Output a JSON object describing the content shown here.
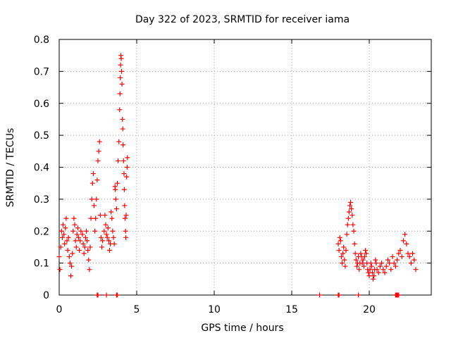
{
  "chart_data": {
    "type": "scatter",
    "title": "Day 322 of 2023, SRMTID for receiver iama",
    "xlabel": "GPS time / hours",
    "ylabel": "SRMTID / TECUs",
    "xlim": [
      0,
      24
    ],
    "ylim": [
      0,
      0.8
    ],
    "x_ticks": [
      0,
      5,
      10,
      15,
      20
    ],
    "x_tick_labels": [
      "0",
      "5",
      "10",
      "15",
      "20"
    ],
    "y_ticks": [
      0,
      0.1,
      0.2,
      0.3,
      0.4,
      0.5,
      0.6,
      0.7,
      0.8
    ],
    "y_tick_labels": [
      "0",
      "0.1",
      "0.2",
      "0.3",
      "0.4",
      "0.5",
      "0.6",
      "0.7",
      "0.8"
    ],
    "grid": true,
    "marker": "+",
    "color": "#ff0000",
    "series": [
      {
        "name": "SRMTID",
        "points": [
          [
            0.0,
            0.12
          ],
          [
            0.05,
            0.08
          ],
          [
            0.1,
            0.15
          ],
          [
            0.15,
            0.2
          ],
          [
            0.2,
            0.18
          ],
          [
            0.25,
            0.22
          ],
          [
            0.3,
            0.19
          ],
          [
            0.35,
            0.16
          ],
          [
            0.4,
            0.21
          ],
          [
            0.45,
            0.24
          ],
          [
            0.5,
            0.17
          ],
          [
            0.55,
            0.14
          ],
          [
            0.6,
            0.18
          ],
          [
            0.65,
            0.12
          ],
          [
            0.7,
            0.1
          ],
          [
            0.75,
            0.06
          ],
          [
            0.8,
            0.09
          ],
          [
            0.85,
            0.13
          ],
          [
            0.9,
            0.2
          ],
          [
            0.95,
            0.24
          ],
          [
            1.0,
            0.22
          ],
          [
            1.05,
            0.17
          ],
          [
            1.1,
            0.15
          ],
          [
            1.15,
            0.19
          ],
          [
            1.2,
            0.21
          ],
          [
            1.25,
            0.18
          ],
          [
            1.3,
            0.14
          ],
          [
            1.35,
            0.17
          ],
          [
            1.4,
            0.2
          ],
          [
            1.5,
            0.19
          ],
          [
            1.55,
            0.16
          ],
          [
            1.6,
            0.13
          ],
          [
            1.65,
            0.15
          ],
          [
            1.7,
            0.18
          ],
          [
            1.75,
            0.2
          ],
          [
            1.8,
            0.17
          ],
          [
            1.85,
            0.14
          ],
          [
            1.9,
            0.11
          ],
          [
            1.95,
            0.08
          ],
          [
            2.0,
            0.15
          ],
          [
            2.05,
            0.24
          ],
          [
            2.1,
            0.3
          ],
          [
            2.15,
            0.35
          ],
          [
            2.2,
            0.38
          ],
          [
            2.25,
            0.28
          ],
          [
            2.3,
            0.2
          ],
          [
            2.35,
            0.24
          ],
          [
            2.4,
            0.3
          ],
          [
            2.45,
            0.36
          ],
          [
            2.5,
            0.42
          ],
          [
            2.55,
            0.45
          ],
          [
            2.6,
            0.48
          ],
          [
            2.65,
            0.25
          ],
          [
            2.7,
            0.18
          ],
          [
            2.75,
            0.15
          ],
          [
            2.8,
            0.17
          ],
          [
            2.9,
            0.2
          ],
          [
            2.95,
            0.25
          ],
          [
            3.0,
            0.22
          ],
          [
            3.05,
            0.19
          ],
          [
            3.1,
            0.18
          ],
          [
            3.15,
            0.21
          ],
          [
            3.2,
            0.17
          ],
          [
            3.25,
            0.14
          ],
          [
            3.3,
            0.16
          ],
          [
            3.35,
            0.26
          ],
          [
            3.4,
            0.24
          ],
          [
            3.45,
            0.2
          ],
          [
            3.5,
            0.18
          ],
          [
            3.55,
            0.16
          ],
          [
            3.6,
            0.34
          ],
          [
            3.62,
            0.33
          ],
          [
            3.65,
            0.3
          ],
          [
            3.7,
            0.27
          ],
          [
            3.75,
            0.35
          ],
          [
            3.8,
            0.42
          ],
          [
            3.85,
            0.48
          ],
          [
            3.9,
            0.58
          ],
          [
            3.92,
            0.63
          ],
          [
            3.94,
            0.68
          ],
          [
            3.96,
            0.72
          ],
          [
            3.98,
            0.75
          ],
          [
            4.0,
            0.74
          ],
          [
            4.02,
            0.7
          ],
          [
            4.05,
            0.66
          ],
          [
            4.08,
            0.55
          ],
          [
            4.1,
            0.52
          ],
          [
            4.12,
            0.47
          ],
          [
            4.15,
            0.42
          ],
          [
            4.18,
            0.38
          ],
          [
            4.2,
            0.33
          ],
          [
            4.22,
            0.28
          ],
          [
            4.25,
            0.24
          ],
          [
            4.28,
            0.2
          ],
          [
            4.3,
            0.18
          ],
          [
            4.32,
            0.25
          ],
          [
            4.35,
            0.37
          ],
          [
            4.38,
            0.4
          ],
          [
            4.4,
            0.43
          ],
          [
            18.0,
            0.16
          ],
          [
            18.05,
            0.14
          ],
          [
            18.1,
            0.18
          ],
          [
            18.15,
            0.17
          ],
          [
            18.2,
            0.12
          ],
          [
            18.25,
            0.1
          ],
          [
            18.3,
            0.13
          ],
          [
            18.35,
            0.15
          ],
          [
            18.4,
            0.11
          ],
          [
            18.45,
            0.09
          ],
          [
            18.5,
            0.14
          ],
          [
            18.55,
            0.19
          ],
          [
            18.6,
            0.22
          ],
          [
            18.65,
            0.24
          ],
          [
            18.7,
            0.26
          ],
          [
            18.75,
            0.28
          ],
          [
            18.8,
            0.29
          ],
          [
            18.85,
            0.27
          ],
          [
            18.9,
            0.25
          ],
          [
            18.95,
            0.22
          ],
          [
            19.0,
            0.2
          ],
          [
            19.05,
            0.16
          ],
          [
            19.1,
            0.13
          ],
          [
            19.15,
            0.11
          ],
          [
            19.2,
            0.09
          ],
          [
            19.25,
            0.1
          ],
          [
            19.3,
            0.12
          ],
          [
            19.35,
            0.08
          ],
          [
            19.4,
            0.1
          ],
          [
            19.45,
            0.13
          ],
          [
            19.5,
            0.12
          ],
          [
            19.55,
            0.1
          ],
          [
            19.6,
            0.11
          ],
          [
            19.65,
            0.09
          ],
          [
            19.7,
            0.12
          ],
          [
            19.75,
            0.14
          ],
          [
            19.8,
            0.13
          ],
          [
            19.85,
            0.1
          ],
          [
            19.9,
            0.08
          ],
          [
            19.95,
            0.07
          ],
          [
            20.0,
            0.06
          ],
          [
            20.05,
            0.08
          ],
          [
            20.1,
            0.1
          ],
          [
            20.15,
            0.09
          ],
          [
            20.2,
            0.07
          ],
          [
            20.25,
            0.05
          ],
          [
            20.3,
            0.06
          ],
          [
            20.35,
            0.08
          ],
          [
            20.4,
            0.11
          ],
          [
            20.45,
            0.1
          ],
          [
            20.5,
            0.08
          ],
          [
            20.6,
            0.07
          ],
          [
            20.7,
            0.09
          ],
          [
            20.8,
            0.1
          ],
          [
            20.9,
            0.08
          ],
          [
            21.0,
            0.07
          ],
          [
            21.1,
            0.09
          ],
          [
            21.2,
            0.11
          ],
          [
            21.3,
            0.1
          ],
          [
            21.4,
            0.08
          ],
          [
            21.5,
            0.12
          ],
          [
            21.6,
            0.1
          ],
          [
            21.7,
            0.09
          ],
          [
            21.8,
            0.11
          ],
          [
            21.9,
            0.13
          ],
          [
            22.0,
            0.14
          ],
          [
            22.1,
            0.12
          ],
          [
            22.2,
            0.17
          ],
          [
            22.3,
            0.19
          ],
          [
            22.4,
            0.16
          ],
          [
            22.5,
            0.13
          ],
          [
            22.6,
            0.12
          ],
          [
            22.7,
            0.1
          ],
          [
            22.8,
            0.13
          ],
          [
            22.9,
            0.11
          ],
          [
            23.0,
            0.08
          ]
        ],
        "zero_points": [
          2.45,
          2.5,
          3.05,
          3.7,
          3.75,
          16.8,
          18.0,
          18.05,
          19.3,
          21.7,
          21.75,
          21.8,
          21.85,
          21.9
        ]
      }
    ]
  }
}
